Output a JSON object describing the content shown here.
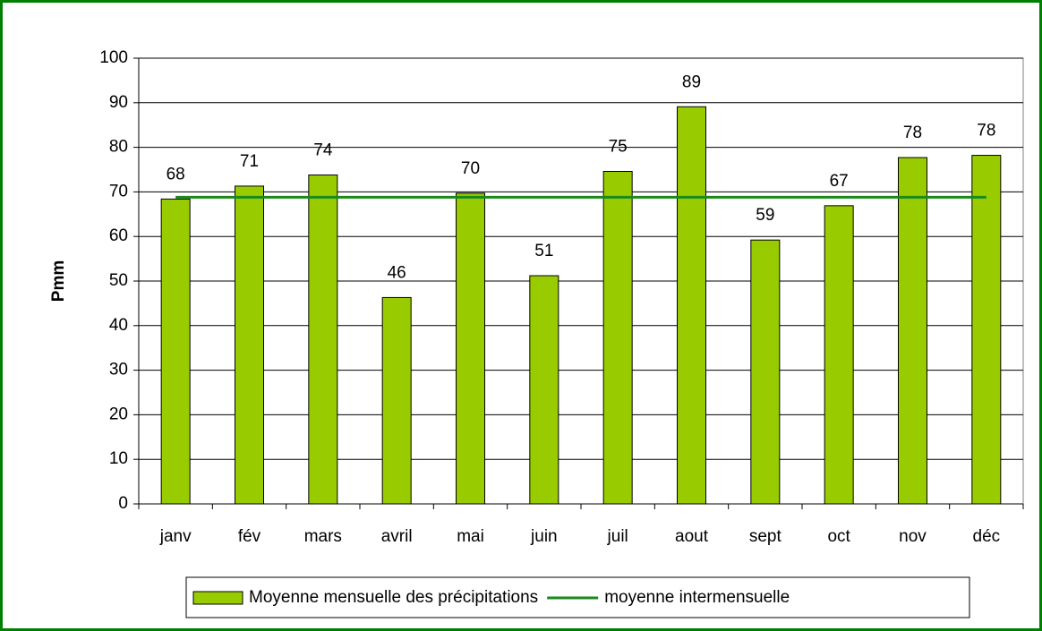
{
  "chart_data": {
    "type": "bar",
    "y_label": "Pmm",
    "categories": [
      "janv",
      "fév",
      "mars",
      "avril",
      "mai",
      "juin",
      "juil",
      "aout",
      "sept",
      "oct",
      "nov",
      "déc"
    ],
    "series": [
      {
        "name": "Moyenne mensuelle des précipitations",
        "type": "bar",
        "color": "#99cc00",
        "values": [
          68.4,
          71.3,
          73.8,
          46.3,
          69.7,
          51.2,
          74.6,
          89.1,
          59.2,
          66.9,
          77.7,
          78.2
        ],
        "value_labels": [
          "68",
          "71",
          "74",
          "46",
          "70",
          "51",
          "75",
          "89",
          "59",
          "67",
          "78",
          "78"
        ]
      },
      {
        "name": "moyenne intermensuelle",
        "type": "line",
        "color": "#1a8a1a",
        "values": [
          68.8,
          68.8,
          68.8,
          68.8,
          68.8,
          68.8,
          68.8,
          68.8,
          68.8,
          68.8,
          68.8,
          68.8
        ]
      }
    ],
    "ylim": [
      0,
      100
    ],
    "yticks": [
      0,
      10,
      20,
      30,
      40,
      50,
      60,
      70,
      80,
      90,
      100
    ],
    "grid": true,
    "legend": "bottom"
  }
}
